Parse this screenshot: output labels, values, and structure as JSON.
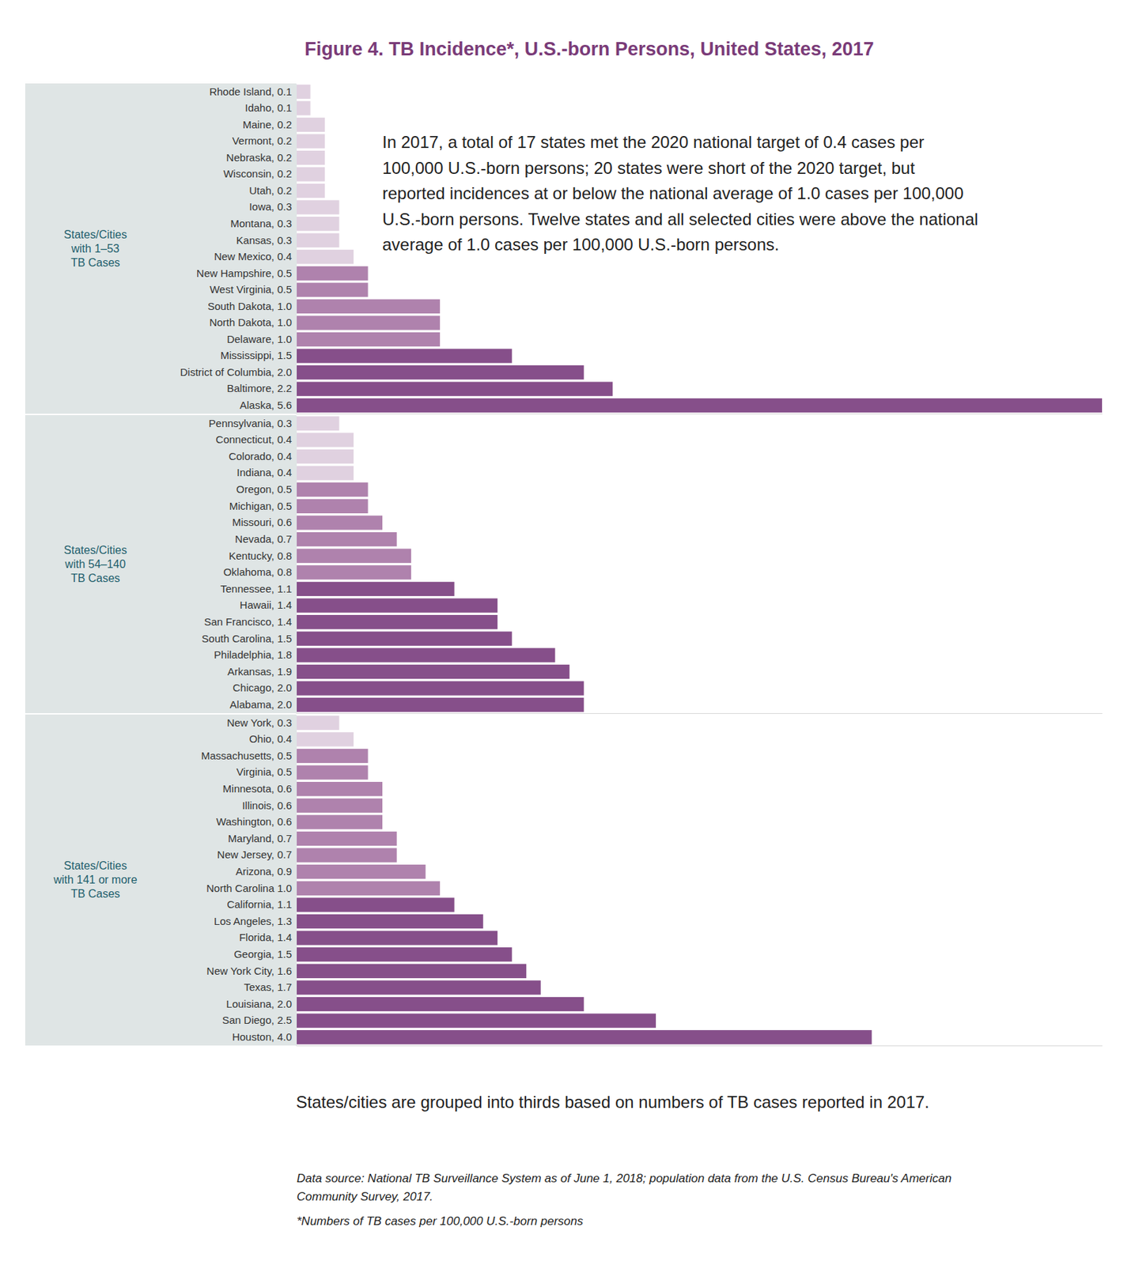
{
  "title": "Figure 4. TB Incidence*, U.S.-born Persons, United States, 2017",
  "annotation": [
    "In 2017, a total of 17 states met the 2020 national target of 0.4 cases per",
    "100,000 U.S.-born persons; 20 states were short of the 2020 target, but",
    "reported incidences at or below the national average of 1.0 cases per 100,000",
    "U.S.-born persons. Twelve states and all selected cities were above the national",
    "average of 1.0 cases per 100,000 U.S.-born persons."
  ],
  "note": "States/cities are grouped into thirds based on numbers of TB cases reported in 2017.",
  "source": [
    "Data source: National TB Surveillance System as of June 1, 2018; population data from the U.S. Census Bureau's American",
    "Community Survey, 2017."
  ],
  "footnote": "*Numbers of TB cases per 100,000 U.S.-born persons",
  "chart_data": [
    {
      "type": "bar",
      "orientation": "horizontal",
      "tick_labels": "y",
      "group_label": [
        "States/Cities",
        "with 1–53",
        "TB Cases"
      ],
      "categories": [
        "Rhode Island, 0.1",
        "Idaho, 0.1",
        "Maine, 0.2",
        "Vermont, 0.2",
        "Nebraska, 0.2",
        "Wisconsin, 0.2",
        "Utah, 0.2",
        "Iowa, 0.3",
        "Montana, 0.3",
        "Kansas, 0.3",
        "New Mexico, 0.4",
        "New Hampshire, 0.5",
        "West Virginia, 0.5",
        "South Dakota, 1.0",
        "North Dakota, 1.0",
        "Delaware, 1.0",
        "Mississippi, 1.5",
        "District of Columbia, 2.0",
        "Baltimore, 2.2",
        "Alaska, 5.6"
      ],
      "values": [
        0.1,
        0.1,
        0.2,
        0.2,
        0.2,
        0.2,
        0.2,
        0.3,
        0.3,
        0.3,
        0.4,
        0.5,
        0.5,
        1.0,
        1.0,
        1.0,
        1.5,
        2.0,
        2.2,
        5.6
      ],
      "colors": [
        "#e0d1e0",
        "#e0d1e0",
        "#e0d1e0",
        "#e0d1e0",
        "#e0d1e0",
        "#e0d1e0",
        "#e0d1e0",
        "#e0d1e0",
        "#e0d1e0",
        "#e0d1e0",
        "#e0d1e0",
        "#af82ad",
        "#af82ad",
        "#af82ad",
        "#af82ad",
        "#af82ad",
        "#864f8a",
        "#864f8a",
        "#864f8a",
        "#864f8a"
      ],
      "xlim": [
        0,
        5.6
      ],
      "xticks": []
    },
    {
      "type": "bar",
      "orientation": "horizontal",
      "tick_labels": "y",
      "group_label": [
        "States/Cities",
        "with 54–140",
        "TB Cases"
      ],
      "categories": [
        "Pennsylvania, 0.3",
        "Connecticut, 0.4",
        "Colorado, 0.4",
        "Indiana, 0.4",
        "Oregon, 0.5",
        "Michigan, 0.5",
        "Missouri, 0.6",
        "Nevada, 0.7",
        "Kentucky, 0.8",
        "Oklahoma, 0.8",
        "Tennessee, 1.1",
        "Hawaii, 1.4",
        "San Francisco, 1.4",
        "South Carolina, 1.5",
        "Philadelphia, 1.8",
        "Arkansas, 1.9",
        "Chicago, 2.0",
        "Alabama, 2.0"
      ],
      "values": [
        0.3,
        0.4,
        0.4,
        0.4,
        0.5,
        0.5,
        0.6,
        0.7,
        0.8,
        0.8,
        1.1,
        1.4,
        1.4,
        1.5,
        1.8,
        1.9,
        2.0,
        2.0
      ],
      "colors": [
        "#e0d1e0",
        "#e0d1e0",
        "#e0d1e0",
        "#e0d1e0",
        "#af82ad",
        "#af82ad",
        "#af82ad",
        "#af82ad",
        "#af82ad",
        "#af82ad",
        "#864f8a",
        "#864f8a",
        "#864f8a",
        "#864f8a",
        "#864f8a",
        "#864f8a",
        "#864f8a",
        "#864f8a"
      ],
      "xlim": [
        0,
        5.6
      ],
      "xticks": []
    },
    {
      "type": "bar",
      "orientation": "horizontal",
      "tick_labels": "y",
      "group_label": [
        "States/Cities",
        "with 141 or more",
        "TB Cases"
      ],
      "categories": [
        "New York, 0.3",
        "Ohio, 0.4",
        "Massachusetts, 0.5",
        "Virginia, 0.5",
        "Minnesota, 0.6",
        "Illinois, 0.6",
        "Washington, 0.6",
        "Maryland, 0.7",
        "New Jersey, 0.7",
        "Arizona, 0.9",
        "North Carolina 1.0",
        "California, 1.1",
        "Los Angeles, 1.3",
        "Florida, 1.4",
        "Georgia, 1.5",
        "New York City, 1.6",
        "Texas, 1.7",
        "Louisiana, 2.0",
        "San Diego, 2.5",
        "Houston, 4.0"
      ],
      "values": [
        0.3,
        0.4,
        0.5,
        0.5,
        0.6,
        0.6,
        0.6,
        0.7,
        0.7,
        0.9,
        1.0,
        1.1,
        1.3,
        1.4,
        1.5,
        1.6,
        1.7,
        2.0,
        2.5,
        4.0
      ],
      "colors": [
        "#e0d1e0",
        "#e0d1e0",
        "#af82ad",
        "#af82ad",
        "#af82ad",
        "#af82ad",
        "#af82ad",
        "#af82ad",
        "#af82ad",
        "#af82ad",
        "#af82ad",
        "#864f8a",
        "#864f8a",
        "#864f8a",
        "#864f8a",
        "#864f8a",
        "#864f8a",
        "#864f8a",
        "#864f8a",
        "#864f8a"
      ],
      "xlim": [
        0,
        5.6
      ],
      "xticks": []
    }
  ]
}
